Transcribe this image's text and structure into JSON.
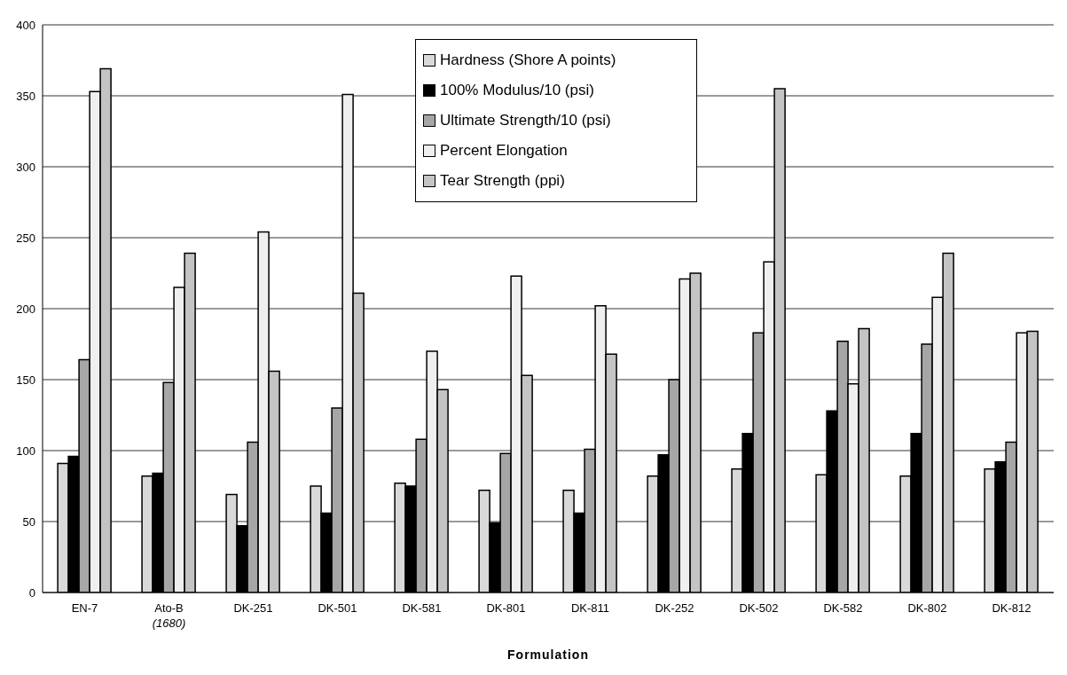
{
  "chart_data": {
    "type": "bar",
    "xlabel": "Formulation",
    "categories": [
      "EN-7",
      "Ato-B (1680)",
      "DK-251",
      "DK-501",
      "DK-581",
      "DK-801",
      "DK-811",
      "DK-252",
      "DK-502",
      "DK-582",
      "DK-802",
      "DK-812"
    ],
    "series": [
      {
        "name": "Hardness (Shore A points)",
        "color": "#d9d9d9",
        "values": [
          91,
          82,
          69,
          75,
          77,
          72,
          72,
          82,
          87,
          83,
          82,
          87
        ]
      },
      {
        "name": "100% Modulus/10 (psi)",
        "color": "#000000",
        "values": [
          96,
          84,
          47,
          56,
          75,
          49,
          56,
          97,
          112,
          128,
          112,
          92
        ]
      },
      {
        "name": "Ultimate Strength/10 (psi)",
        "color": "#a6a6a6",
        "values": [
          164,
          148,
          106,
          130,
          108,
          98,
          101,
          150,
          183,
          177,
          175,
          106
        ]
      },
      {
        "name": "Percent Elongation",
        "color": "#efefef",
        "values": [
          353,
          215,
          254,
          351,
          170,
          223,
          202,
          221,
          233,
          147,
          208,
          183
        ]
      },
      {
        "name": "Tear Strength (ppi)",
        "color": "#c4c4c4",
        "values": [
          369,
          239,
          156,
          211,
          143,
          153,
          168,
          225,
          355,
          186,
          239,
          184
        ]
      }
    ],
    "ylim": [
      0,
      400
    ],
    "yticks": [
      0,
      50,
      100,
      150,
      200,
      250,
      300,
      350,
      400
    ],
    "grid": "y",
    "legend": "top"
  }
}
